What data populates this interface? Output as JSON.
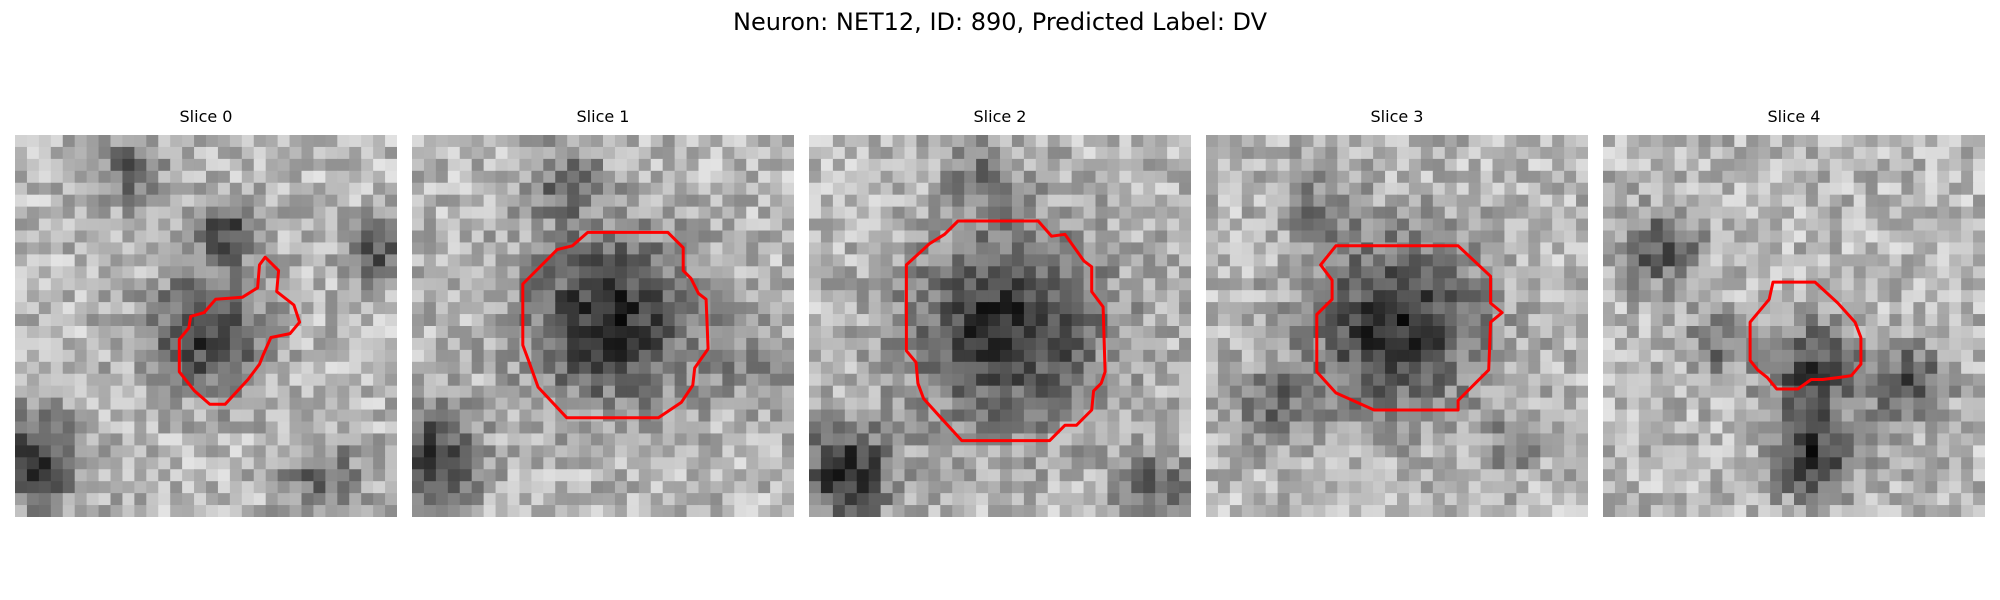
{
  "figure": {
    "title": "Neuron: NET12, ID: 890, Predicted Label: DV"
  },
  "colors": {
    "contour": "#ff0000",
    "background": "#ffffff"
  },
  "slices": [
    {
      "title": "Slice 0",
      "contour": [
        [
          0.655,
          0.32
        ],
        [
          0.69,
          0.355
        ],
        [
          0.685,
          0.41
        ],
        [
          0.73,
          0.445
        ],
        [
          0.745,
          0.49
        ],
        [
          0.72,
          0.52
        ],
        [
          0.67,
          0.53
        ],
        [
          0.65,
          0.575
        ],
        [
          0.64,
          0.6
        ],
        [
          0.61,
          0.64
        ],
        [
          0.55,
          0.705
        ],
        [
          0.51,
          0.705
        ],
        [
          0.47,
          0.67
        ],
        [
          0.43,
          0.62
        ],
        [
          0.43,
          0.535
        ],
        [
          0.455,
          0.505
        ],
        [
          0.46,
          0.475
        ],
        [
          0.495,
          0.465
        ],
        [
          0.525,
          0.43
        ],
        [
          0.595,
          0.425
        ],
        [
          0.635,
          0.4
        ],
        [
          0.64,
          0.34
        ]
      ]
    },
    {
      "title": "Slice 1",
      "contour": [
        [
          0.46,
          0.255
        ],
        [
          0.67,
          0.255
        ],
        [
          0.71,
          0.295
        ],
        [
          0.71,
          0.355
        ],
        [
          0.73,
          0.375
        ],
        [
          0.75,
          0.415
        ],
        [
          0.77,
          0.43
        ],
        [
          0.775,
          0.56
        ],
        [
          0.74,
          0.61
        ],
        [
          0.735,
          0.655
        ],
        [
          0.705,
          0.7
        ],
        [
          0.645,
          0.74
        ],
        [
          0.405,
          0.74
        ],
        [
          0.33,
          0.66
        ],
        [
          0.305,
          0.59
        ],
        [
          0.29,
          0.55
        ],
        [
          0.29,
          0.39
        ],
        [
          0.38,
          0.3
        ],
        [
          0.42,
          0.29
        ]
      ]
    },
    {
      "title": "Slice 2",
      "contour": [
        [
          0.39,
          0.225
        ],
        [
          0.6,
          0.225
        ],
        [
          0.635,
          0.265
        ],
        [
          0.67,
          0.26
        ],
        [
          0.72,
          0.33
        ],
        [
          0.74,
          0.345
        ],
        [
          0.74,
          0.41
        ],
        [
          0.77,
          0.45
        ],
        [
          0.775,
          0.62
        ],
        [
          0.765,
          0.65
        ],
        [
          0.745,
          0.67
        ],
        [
          0.74,
          0.72
        ],
        [
          0.7,
          0.76
        ],
        [
          0.67,
          0.76
        ],
        [
          0.63,
          0.8
        ],
        [
          0.4,
          0.8
        ],
        [
          0.345,
          0.74
        ],
        [
          0.3,
          0.69
        ],
        [
          0.285,
          0.65
        ],
        [
          0.28,
          0.595
        ],
        [
          0.255,
          0.565
        ],
        [
          0.255,
          0.34
        ],
        [
          0.315,
          0.285
        ],
        [
          0.355,
          0.26
        ]
      ]
    },
    {
      "title": "Slice 3",
      "contour": [
        [
          0.34,
          0.29
        ],
        [
          0.66,
          0.29
        ],
        [
          0.745,
          0.37
        ],
        [
          0.745,
          0.44
        ],
        [
          0.775,
          0.465
        ],
        [
          0.745,
          0.49
        ],
        [
          0.74,
          0.615
        ],
        [
          0.66,
          0.695
        ],
        [
          0.66,
          0.72
        ],
        [
          0.44,
          0.72
        ],
        [
          0.34,
          0.675
        ],
        [
          0.29,
          0.62
        ],
        [
          0.29,
          0.47
        ],
        [
          0.33,
          0.43
        ],
        [
          0.33,
          0.38
        ],
        [
          0.3,
          0.34
        ]
      ]
    },
    {
      "title": "Slice 4",
      "contour": [
        [
          0.445,
          0.385
        ],
        [
          0.555,
          0.385
        ],
        [
          0.615,
          0.44
        ],
        [
          0.66,
          0.49
        ],
        [
          0.675,
          0.53
        ],
        [
          0.675,
          0.6
        ],
        [
          0.65,
          0.63
        ],
        [
          0.615,
          0.635
        ],
        [
          0.575,
          0.64
        ],
        [
          0.545,
          0.64
        ],
        [
          0.51,
          0.665
        ],
        [
          0.455,
          0.665
        ],
        [
          0.43,
          0.635
        ],
        [
          0.405,
          0.615
        ],
        [
          0.385,
          0.59
        ],
        [
          0.385,
          0.49
        ],
        [
          0.435,
          0.43
        ]
      ]
    }
  ]
}
